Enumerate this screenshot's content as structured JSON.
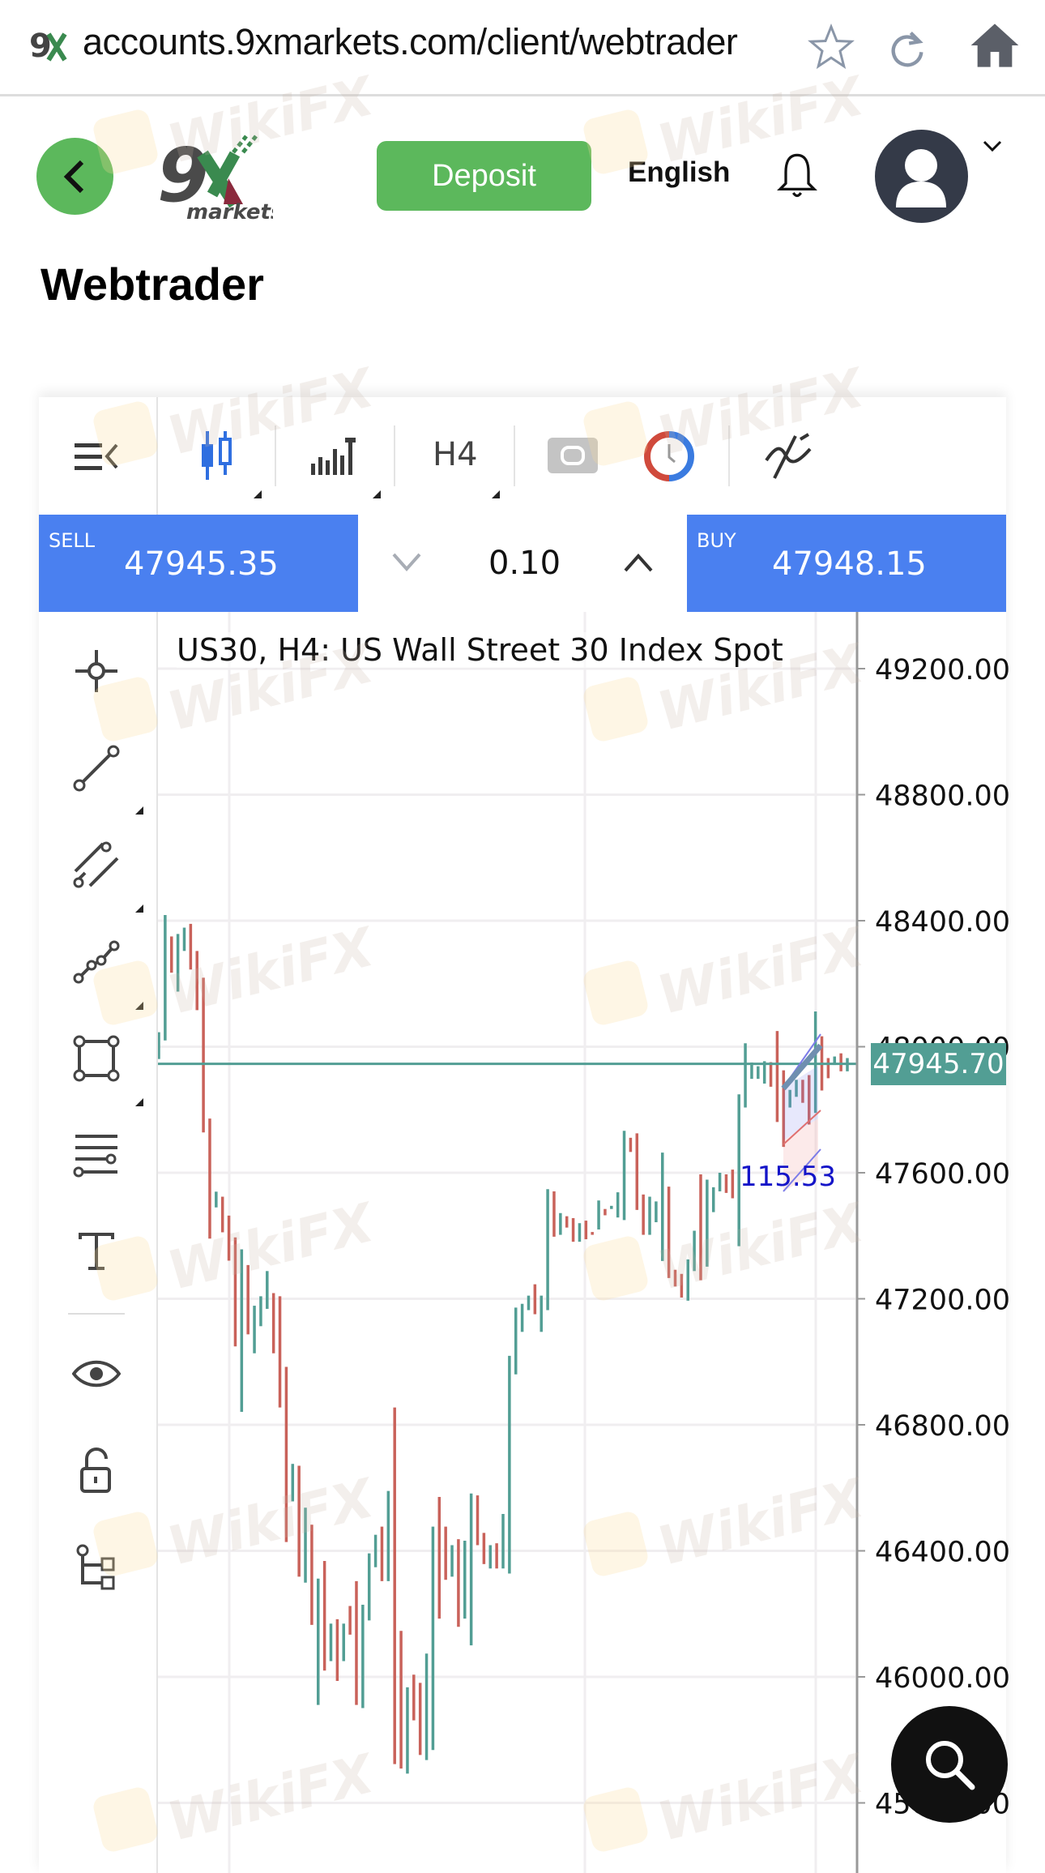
{
  "browser": {
    "url": "accounts.9xmarkets.com/client/webtrader",
    "icons": [
      "favicon-9x",
      "star-icon",
      "reload-icon",
      "home-icon"
    ]
  },
  "header": {
    "logo_text": "9X markets",
    "deposit_label": "Deposit",
    "language": "English",
    "icons": [
      "back-icon",
      "bell-icon",
      "user-avatar-icon",
      "chevron-down-icon"
    ],
    "brand_color": "#5cb85c"
  },
  "page_title": "Webtrader",
  "toolbar": {
    "timeframe": "H4",
    "icons": [
      "menu-collapse-icon",
      "candlestick-icon",
      "bar-chart-icon",
      "link-icon",
      "clock-icon",
      "indicator-icon"
    ]
  },
  "trade": {
    "sell_label": "SELL",
    "sell_price": "47945.35",
    "volume": "0.10",
    "buy_label": "BUY",
    "buy_price": "47948.15",
    "accent": "#4a80f0"
  },
  "drawing_tools": [
    "crosshair-icon",
    "trendline-icon",
    "parallel-channel-icon",
    "polyline-icon",
    "rectangle-icon",
    "fib-levels-icon",
    "text-icon",
    "eye-icon",
    "unlock-icon",
    "object-tree-icon"
  ],
  "watermark": "WikiFX",
  "chart_data": {
    "type": "candlestick",
    "title": "US30, H4: US Wall Street 30 Index Spot",
    "y_ticks": [
      "49200.00",
      "48800.00",
      "48400.00",
      "48000.00",
      "47600.00",
      "47200.00",
      "46800.00",
      "46400.00",
      "46000.00",
      "45600.00"
    ],
    "ylim": [
      45400,
      49280
    ],
    "current_price": "47945.70",
    "annotation": "115.53",
    "up_color": "#529e94",
    "down_color": "#c9625a",
    "bars": [
      [
        48046,
        47961,
        "up"
      ],
      [
        48418,
        48020,
        "up"
      ],
      [
        48350,
        48235,
        "down"
      ],
      [
        48358,
        48175,
        "up"
      ],
      [
        48378,
        48304,
        "up"
      ],
      [
        48390,
        48245,
        "down"
      ],
      [
        48304,
        48116,
        "down"
      ],
      [
        48219,
        47728,
        "down"
      ],
      [
        47772,
        47391,
        "down"
      ],
      [
        47540,
        47490,
        "up"
      ],
      [
        47524,
        47411,
        "down"
      ],
      [
        47464,
        47321,
        "down"
      ],
      [
        47395,
        47049,
        "down"
      ],
      [
        47357,
        46841,
        "up"
      ],
      [
        47307,
        47087,
        "down"
      ],
      [
        47178,
        47027,
        "up"
      ],
      [
        47208,
        47113,
        "up"
      ],
      [
        47288,
        47168,
        "up"
      ],
      [
        47218,
        47027,
        "down"
      ],
      [
        47208,
        46855,
        "down"
      ],
      [
        46984,
        46428,
        "down"
      ],
      [
        46676,
        46557,
        "up"
      ],
      [
        46670,
        46318,
        "down"
      ],
      [
        46537,
        46299,
        "up"
      ],
      [
        46483,
        46165,
        "down"
      ],
      [
        46312,
        45911,
        "up"
      ],
      [
        46368,
        46020,
        "down"
      ],
      [
        46169,
        46050,
        "up"
      ],
      [
        46183,
        45987,
        "down"
      ],
      [
        46169,
        46050,
        "up"
      ],
      [
        46225,
        46134,
        "down"
      ],
      [
        46304,
        45911,
        "down"
      ],
      [
        46229,
        45901,
        "up"
      ],
      [
        46392,
        46179,
        "up"
      ],
      [
        46451,
        46348,
        "up"
      ],
      [
        46477,
        46304,
        "down"
      ],
      [
        46590,
        46304,
        "up"
      ],
      [
        46855,
        45723,
        "down"
      ],
      [
        46146,
        45709,
        "down"
      ],
      [
        45967,
        45693,
        "up"
      ],
      [
        46007,
        45862,
        "down"
      ],
      [
        45981,
        45752,
        "down"
      ],
      [
        46074,
        45736,
        "up"
      ],
      [
        46477,
        45768,
        "up"
      ],
      [
        46571,
        46185,
        "down"
      ],
      [
        46477,
        46308,
        "down"
      ],
      [
        46418,
        46318,
        "up"
      ],
      [
        46437,
        46159,
        "down"
      ],
      [
        46432,
        46185,
        "up"
      ],
      [
        46582,
        46100,
        "up"
      ],
      [
        46576,
        46418,
        "down"
      ],
      [
        46457,
        46358,
        "down"
      ],
      [
        46418,
        46344,
        "up"
      ],
      [
        46424,
        46344,
        "down"
      ],
      [
        46517,
        46344,
        "up"
      ],
      [
        47019,
        46328,
        "up"
      ],
      [
        47172,
        46960,
        "up"
      ],
      [
        47184,
        47095,
        "up"
      ],
      [
        47210,
        47164,
        "up"
      ],
      [
        47246,
        47151,
        "down"
      ],
      [
        47210,
        47095,
        "up"
      ],
      [
        47548,
        47164,
        "up"
      ],
      [
        47541,
        47397,
        "down"
      ],
      [
        47472,
        47403,
        "up"
      ],
      [
        47462,
        47426,
        "down"
      ],
      [
        47456,
        47381,
        "down"
      ],
      [
        47440,
        47381,
        "up"
      ],
      [
        47448,
        47389,
        "down"
      ],
      [
        47412,
        47403,
        "down"
      ],
      [
        47512,
        47420,
        "up"
      ],
      [
        47485,
        47465,
        "down"
      ],
      [
        47495,
        47485,
        "up"
      ],
      [
        47538,
        47458,
        "up"
      ],
      [
        47733,
        47450,
        "up"
      ],
      [
        47711,
        47666,
        "down"
      ],
      [
        47725,
        47482,
        "down"
      ],
      [
        47531,
        47403,
        "down"
      ],
      [
        47524,
        47403,
        "up"
      ],
      [
        47509,
        47443,
        "up"
      ],
      [
        47664,
        47320,
        "up"
      ],
      [
        47556,
        47266,
        "down"
      ],
      [
        47292,
        47239,
        "down"
      ],
      [
        47279,
        47204,
        "down"
      ],
      [
        47325,
        47194,
        "up"
      ],
      [
        47416,
        47288,
        "up"
      ],
      [
        47595,
        47259,
        "down"
      ],
      [
        47578,
        47302,
        "up"
      ],
      [
        47554,
        47475,
        "up"
      ],
      [
        47600,
        47541,
        "up"
      ],
      [
        47595,
        47536,
        "down"
      ],
      [
        47610,
        47519,
        "down"
      ],
      [
        47849,
        47367,
        "up"
      ],
      [
        48011,
        47807,
        "up"
      ],
      [
        47950,
        47898,
        "up"
      ],
      [
        47938,
        47898,
        "up"
      ],
      [
        47954,
        47883,
        "up"
      ],
      [
        47951,
        47873,
        "down"
      ],
      [
        48050,
        47761,
        "down"
      ],
      [
        47925,
        47682,
        "down"
      ],
      [
        47863,
        47807,
        "up"
      ],
      [
        47895,
        47841,
        "up"
      ],
      [
        47895,
        47822,
        "down"
      ],
      [
        47910,
        47753,
        "down"
      ],
      [
        48112,
        47790,
        "up"
      ],
      [
        48033,
        47861,
        "down"
      ],
      [
        47964,
        47900,
        "down"
      ],
      [
        47969,
        47942,
        "up"
      ],
      [
        47979,
        47922,
        "down"
      ],
      [
        47964,
        47922,
        "up"
      ]
    ]
  }
}
